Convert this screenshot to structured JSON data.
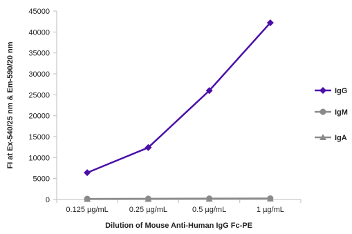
{
  "chart_data": {
    "type": "line",
    "categories": [
      "0.125 µg/mL",
      "0.25 µg/mL",
      "0.5 µg/mL",
      "1 µg/mL"
    ],
    "series": [
      {
        "name": "IgG",
        "values": [
          6400,
          12400,
          26000,
          42200
        ],
        "color": "#4b0fa8",
        "marker": "diamond"
      },
      {
        "name": "IgM",
        "values": [
          150,
          180,
          220,
          250
        ],
        "color": "#8a8a8a",
        "marker": "circle"
      },
      {
        "name": "IgA",
        "values": [
          100,
          130,
          170,
          200
        ],
        "color": "#8a8a8a",
        "marker": "triangle"
      }
    ],
    "xlabel": "Dilution of Mouse Anti-Human IgG Fc-PE",
    "ylabel": "FI at Ex-540/25 nm & Em-590/20 nm",
    "ylim": [
      0,
      45000
    ],
    "yticks": [
      0,
      5000,
      10000,
      15000,
      20000,
      25000,
      30000,
      35000,
      40000,
      45000
    ],
    "grid": false,
    "legend_position": "right"
  }
}
